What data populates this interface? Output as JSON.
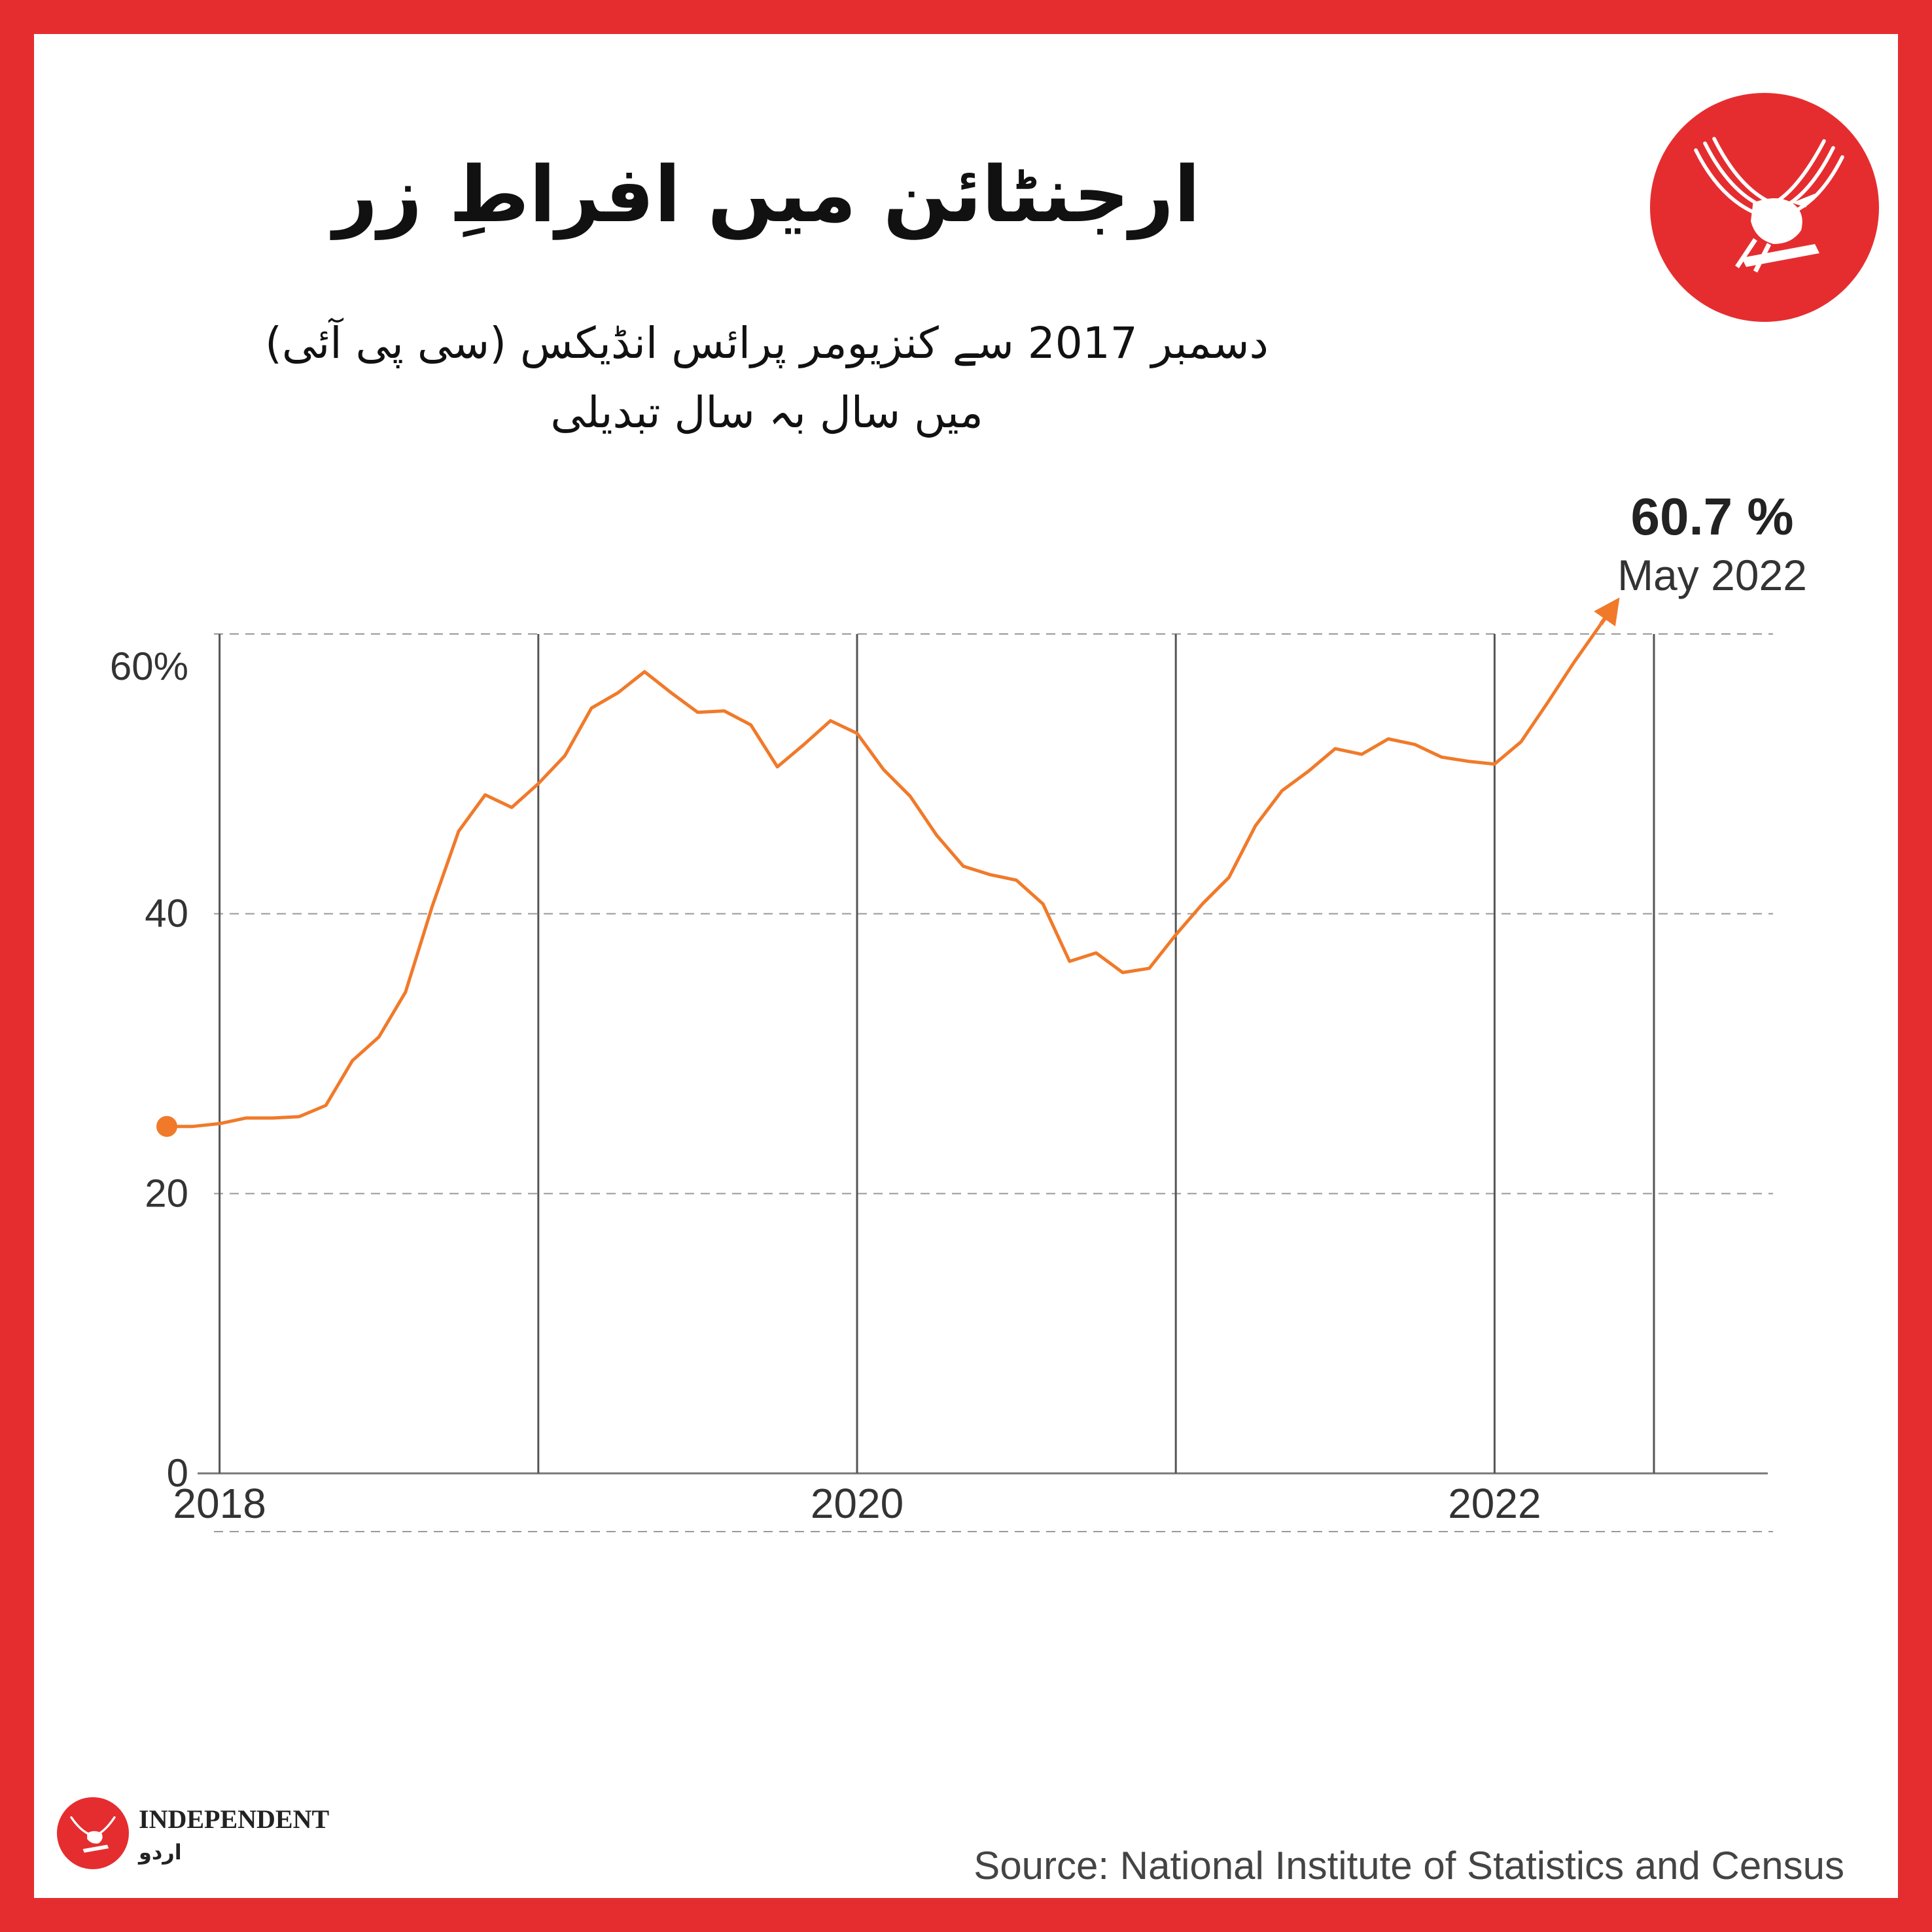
{
  "title": "ارجنٹائن میں افراطِ زر",
  "subtitle_line1": "دسمبر 2017 سے کنزیومر پرائس انڈیکس (سی پی آئی)",
  "subtitle_line2": "میں سال بہ سال تبدیلی",
  "annotation": {
    "value": "60.7 %",
    "date": "May 2022"
  },
  "source": "Source: National Institute of Statistics and Census",
  "brand": {
    "name": "INDEPENDENT",
    "sub": "اردو"
  },
  "colors": {
    "frame": "#e52d30",
    "line": "#f07a2a",
    "grid": "#999999",
    "gridline_vertical": "#555555"
  },
  "chart_data": {
    "type": "line",
    "title": "ارجنٹائن میں افراطِ زر",
    "ylim": [
      0,
      62
    ],
    "yticks": [
      {
        "value": 60,
        "label": "60%"
      },
      {
        "value": 40,
        "label": "40"
      },
      {
        "value": 20,
        "label": "20"
      },
      {
        "value": 0,
        "label": "0"
      }
    ],
    "xrange": [
      "2017-12",
      "2022-05"
    ],
    "xtick_labels": [
      {
        "x": "2018-01",
        "label": "2018"
      },
      {
        "x": "2020-01",
        "label": "2020"
      },
      {
        "x": "2022-01",
        "label": "2022"
      }
    ],
    "vertical_gridlines": [
      "2018-01",
      "2019-01",
      "2020-01",
      "2021-01",
      "2022-01",
      "2022-07"
    ],
    "series": [
      {
        "x": [
          "2017-12",
          "2018-01",
          "2018-02",
          "2018-03",
          "2018-04",
          "2018-05",
          "2018-06",
          "2018-07",
          "2018-08",
          "2018-09",
          "2018-10",
          "2018-11",
          "2018-12",
          "2019-01",
          "2019-02",
          "2019-03",
          "2019-04",
          "2019-05",
          "2019-06",
          "2019-07",
          "2019-08",
          "2019-09",
          "2019-10",
          "2019-11",
          "2019-12",
          "2020-01",
          "2020-02",
          "2020-03",
          "2020-04",
          "2020-05",
          "2020-06",
          "2020-07",
          "2020-08",
          "2020-09",
          "2020-10",
          "2020-11",
          "2020-12",
          "2021-01",
          "2021-02",
          "2021-03",
          "2021-04",
          "2021-05",
          "2021-06",
          "2021-07",
          "2021-08",
          "2021-09",
          "2021-10",
          "2021-11",
          "2021-12",
          "2022-01",
          "2022-02",
          "2022-03",
          "2022-04",
          "2022-05"
        ],
        "values": [
          24.8,
          25.0,
          25.4,
          25.4,
          25.5,
          26.3,
          29.5,
          31.2,
          34.4,
          40.5,
          45.9,
          48.5,
          47.6,
          49.3,
          51.3,
          54.7,
          55.8,
          57.3,
          55.8,
          54.4,
          54.5,
          53.5,
          50.5,
          52.1,
          53.8,
          52.9,
          50.3,
          48.4,
          45.6,
          43.4,
          42.8,
          42.4,
          40.7,
          36.6,
          37.2,
          35.8,
          36.1,
          38.5,
          40.7,
          42.6,
          46.3,
          48.8,
          50.2,
          51.8,
          51.4,
          52.5,
          52.1,
          51.2,
          50.9,
          50.7,
          52.3,
          55.1,
          58.0,
          60.7
        ]
      }
    ]
  }
}
